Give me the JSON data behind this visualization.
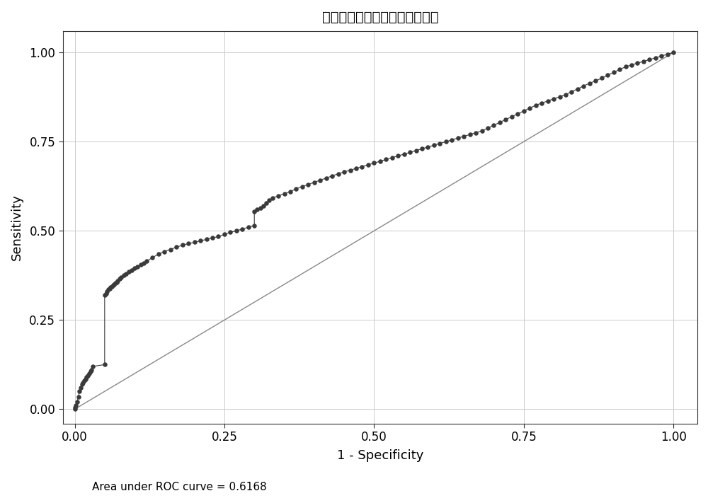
{
  "title": "传统风险因素预测凝血功能异常",
  "xlabel": "1 - Specificity",
  "ylabel": "Sensitivity",
  "auc_text": "Area under ROC curve = 0.6168",
  "xticks": [
    0.0,
    0.25,
    0.5,
    0.75,
    1.0
  ],
  "yticks": [
    0.0,
    0.25,
    0.5,
    0.75,
    1.0
  ],
  "dot_color": "#3a3a3a",
  "line_color": "#888888",
  "dot_size": 22,
  "roc_fpr": [
    0.0,
    0.0,
    0.002,
    0.004,
    0.006,
    0.008,
    0.01,
    0.012,
    0.014,
    0.016,
    0.018,
    0.02,
    0.022,
    0.024,
    0.026,
    0.028,
    0.03,
    0.05,
    0.05,
    0.052,
    0.054,
    0.056,
    0.058,
    0.06,
    0.062,
    0.064,
    0.066,
    0.068,
    0.07,
    0.072,
    0.075,
    0.078,
    0.082,
    0.086,
    0.09,
    0.095,
    0.1,
    0.105,
    0.11,
    0.115,
    0.12,
    0.13,
    0.14,
    0.15,
    0.16,
    0.17,
    0.18,
    0.19,
    0.2,
    0.21,
    0.22,
    0.23,
    0.24,
    0.25,
    0.26,
    0.27,
    0.28,
    0.29,
    0.3,
    0.3,
    0.305,
    0.31,
    0.315,
    0.32,
    0.325,
    0.33,
    0.34,
    0.35,
    0.36,
    0.37,
    0.38,
    0.39,
    0.4,
    0.41,
    0.42,
    0.43,
    0.44,
    0.45,
    0.46,
    0.47,
    0.48,
    0.49,
    0.5,
    0.51,
    0.52,
    0.53,
    0.54,
    0.55,
    0.56,
    0.57,
    0.58,
    0.59,
    0.6,
    0.61,
    0.62,
    0.63,
    0.64,
    0.65,
    0.66,
    0.67,
    0.68,
    0.69,
    0.7,
    0.71,
    0.72,
    0.73,
    0.74,
    0.75,
    0.76,
    0.77,
    0.78,
    0.79,
    0.8,
    0.81,
    0.82,
    0.83,
    0.84,
    0.85,
    0.86,
    0.87,
    0.88,
    0.89,
    0.9,
    0.91,
    0.92,
    0.93,
    0.94,
    0.95,
    0.96,
    0.97,
    0.98,
    0.99,
    1.0
  ],
  "roc_tpr": [
    0.0,
    0.005,
    0.01,
    0.02,
    0.035,
    0.05,
    0.06,
    0.07,
    0.075,
    0.08,
    0.085,
    0.09,
    0.095,
    0.1,
    0.105,
    0.11,
    0.12,
    0.125,
    0.32,
    0.325,
    0.33,
    0.335,
    0.338,
    0.341,
    0.344,
    0.347,
    0.35,
    0.353,
    0.356,
    0.36,
    0.365,
    0.37,
    0.375,
    0.38,
    0.385,
    0.39,
    0.395,
    0.4,
    0.405,
    0.41,
    0.415,
    0.425,
    0.435,
    0.442,
    0.448,
    0.454,
    0.46,
    0.464,
    0.468,
    0.472,
    0.476,
    0.48,
    0.484,
    0.49,
    0.496,
    0.5,
    0.505,
    0.51,
    0.515,
    0.555,
    0.56,
    0.565,
    0.57,
    0.578,
    0.585,
    0.592,
    0.598,
    0.604,
    0.61,
    0.618,
    0.624,
    0.63,
    0.636,
    0.642,
    0.648,
    0.654,
    0.66,
    0.665,
    0.67,
    0.675,
    0.68,
    0.685,
    0.69,
    0.695,
    0.7,
    0.705,
    0.71,
    0.715,
    0.72,
    0.725,
    0.73,
    0.735,
    0.74,
    0.745,
    0.75,
    0.755,
    0.76,
    0.765,
    0.77,
    0.775,
    0.78,
    0.788,
    0.796,
    0.804,
    0.812,
    0.82,
    0.828,
    0.836,
    0.844,
    0.852,
    0.858,
    0.864,
    0.87,
    0.876,
    0.882,
    0.89,
    0.898,
    0.906,
    0.914,
    0.92,
    0.928,
    0.936,
    0.944,
    0.952,
    0.96,
    0.965,
    0.97,
    0.975,
    0.98,
    0.985,
    0.99,
    0.995,
    1.0
  ]
}
